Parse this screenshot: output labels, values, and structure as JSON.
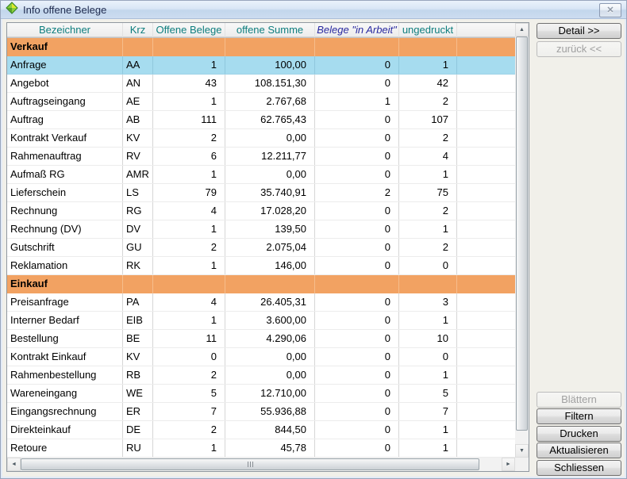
{
  "window": {
    "title": "Info offene Belege"
  },
  "titlebar": {
    "close_icon": "✕"
  },
  "colors": {
    "section_bg": "#F2A262",
    "selected_row_bg": "#A6DCEF",
    "header_text_teal": "#0E7E7E",
    "in_arbeit_text_navy": "#2A2AA0",
    "titlebar_blue": "#CCDCF0"
  },
  "table": {
    "columns": [
      {
        "key": "bezeichner",
        "label": "Bezeichner"
      },
      {
        "key": "krz",
        "label": "Krz"
      },
      {
        "key": "offene_belege",
        "label": "Offene Belege"
      },
      {
        "key": "offene_summe",
        "label": "offene Summe"
      },
      {
        "key": "in_arbeit",
        "label": "Belege \"in Arbeit\"",
        "emphasis": true
      },
      {
        "key": "ungedruckt",
        "label": "ungedruckt"
      }
    ],
    "sections": [
      {
        "label": "Verkauf",
        "rows": [
          {
            "bezeichner": "Anfrage",
            "krz": "AA",
            "offene_belege": "1",
            "offene_summe": "100,00",
            "in_arbeit": "0",
            "ungedruckt": "1",
            "selected": true
          },
          {
            "bezeichner": "Angebot",
            "krz": "AN",
            "offene_belege": "43",
            "offene_summe": "108.151,30",
            "in_arbeit": "0",
            "ungedruckt": "42"
          },
          {
            "bezeichner": "Auftragseingang",
            "krz": "AE",
            "offene_belege": "1",
            "offene_summe": "2.767,68",
            "in_arbeit": "1",
            "ungedruckt": "2"
          },
          {
            "bezeichner": "Auftrag",
            "krz": "AB",
            "offene_belege": "111",
            "offene_summe": "62.765,43",
            "in_arbeit": "0",
            "ungedruckt": "107"
          },
          {
            "bezeichner": "Kontrakt Verkauf",
            "krz": "KV",
            "offene_belege": "2",
            "offene_summe": "0,00",
            "in_arbeit": "0",
            "ungedruckt": "2"
          },
          {
            "bezeichner": "Rahmenauftrag",
            "krz": "RV",
            "offene_belege": "6",
            "offene_summe": "12.211,77",
            "in_arbeit": "0",
            "ungedruckt": "4"
          },
          {
            "bezeichner": "Aufmaß RG",
            "krz": "AMR",
            "offene_belege": "1",
            "offene_summe": "0,00",
            "in_arbeit": "0",
            "ungedruckt": "1"
          },
          {
            "bezeichner": "Lieferschein",
            "krz": "LS",
            "offene_belege": "79",
            "offene_summe": "35.740,91",
            "in_arbeit": "2",
            "ungedruckt": "75"
          },
          {
            "bezeichner": "Rechnung",
            "krz": "RG",
            "offene_belege": "4",
            "offene_summe": "17.028,20",
            "in_arbeit": "0",
            "ungedruckt": "2"
          },
          {
            "bezeichner": "Rechnung (DV)",
            "krz": "DV",
            "offene_belege": "1",
            "offene_summe": "139,50",
            "in_arbeit": "0",
            "ungedruckt": "1"
          },
          {
            "bezeichner": "Gutschrift",
            "krz": "GU",
            "offene_belege": "2",
            "offene_summe": "2.075,04",
            "in_arbeit": "0",
            "ungedruckt": "2"
          },
          {
            "bezeichner": "Reklamation",
            "krz": "RK",
            "offene_belege": "1",
            "offene_summe": "146,00",
            "in_arbeit": "0",
            "ungedruckt": "0"
          }
        ]
      },
      {
        "label": "Einkauf",
        "rows": [
          {
            "bezeichner": "Preisanfrage",
            "krz": "PA",
            "offene_belege": "4",
            "offene_summe": "26.405,31",
            "in_arbeit": "0",
            "ungedruckt": "3"
          },
          {
            "bezeichner": "Interner Bedarf",
            "krz": "EIB",
            "offene_belege": "1",
            "offene_summe": "3.600,00",
            "in_arbeit": "0",
            "ungedruckt": "1"
          },
          {
            "bezeichner": "Bestellung",
            "krz": "BE",
            "offene_belege": "11",
            "offene_summe": "4.290,06",
            "in_arbeit": "0",
            "ungedruckt": "10"
          },
          {
            "bezeichner": "Kontrakt Einkauf",
            "krz": "KV",
            "offene_belege": "0",
            "offene_summe": "0,00",
            "in_arbeit": "0",
            "ungedruckt": "0"
          },
          {
            "bezeichner": "Rahmenbestellung",
            "krz": "RB",
            "offene_belege": "2",
            "offene_summe": "0,00",
            "in_arbeit": "0",
            "ungedruckt": "1"
          },
          {
            "bezeichner": "Wareneingang",
            "krz": "WE",
            "offene_belege": "5",
            "offene_summe": "12.710,00",
            "in_arbeit": "0",
            "ungedruckt": "5"
          },
          {
            "bezeichner": "Eingangsrechnung",
            "krz": "ER",
            "offene_belege": "7",
            "offene_summe": "55.936,88",
            "in_arbeit": "0",
            "ungedruckt": "7"
          },
          {
            "bezeichner": "Direkteinkauf",
            "krz": "DE",
            "offene_belege": "2",
            "offene_summe": "844,50",
            "in_arbeit": "0",
            "ungedruckt": "1"
          },
          {
            "bezeichner": "Retoure",
            "krz": "RU",
            "offene_belege": "1",
            "offene_summe": "45,78",
            "in_arbeit": "0",
            "ungedruckt": "1"
          }
        ]
      }
    ]
  },
  "buttons": {
    "detail": {
      "label": "Detail >>",
      "enabled": true
    },
    "zurueck": {
      "label": "zurück <<",
      "enabled": false
    },
    "blaettern": {
      "label": "Blättern",
      "enabled": false
    },
    "filtern": {
      "label": "Filtern",
      "enabled": true
    },
    "drucken": {
      "label": "Drucken",
      "enabled": true
    },
    "aktualisieren": {
      "label": "Aktualisieren",
      "enabled": true
    },
    "schliessen": {
      "label": "Schliessen",
      "enabled": true
    }
  }
}
